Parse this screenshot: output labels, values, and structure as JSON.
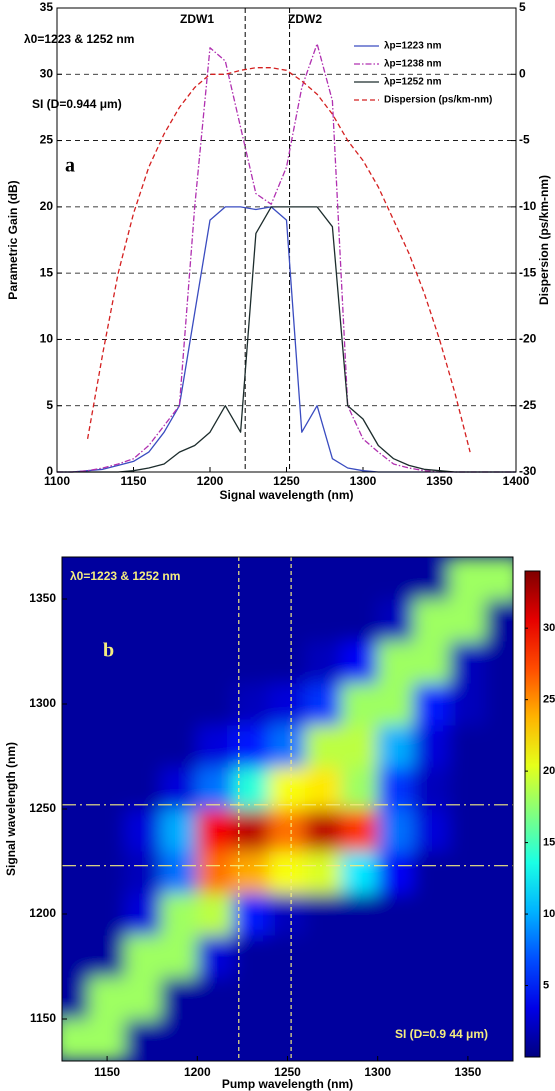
{
  "chart_data": [
    {
      "type": "line",
      "xlabel": "Signal wavelength (nm)",
      "ylabel": "Parametric Gain (dB)",
      "y2label": "Dispersion (ps/km-nm)",
      "annotations": [
        "ZDW1",
        "ZDW2",
        "λ0=1223 & 1252 nm",
        "SI (D=0.944 μm)",
        "a"
      ],
      "vlines": [
        1223,
        1252
      ],
      "xlim": [
        1100,
        1400
      ],
      "xticks": [
        1100,
        1150,
        1200,
        1250,
        1300,
        1350,
        1400
      ],
      "ylim": [
        0,
        35
      ],
      "yticks": [
        0,
        5,
        10,
        15,
        20,
        25,
        30,
        35
      ],
      "y2lim": [
        -30,
        5
      ],
      "y2ticks": [
        -30,
        -25,
        -20,
        -15,
        -10,
        -5,
        0,
        5
      ],
      "grid": true,
      "legend": "upper right",
      "x": [
        1100,
        1110,
        1120,
        1130,
        1140,
        1150,
        1160,
        1170,
        1180,
        1190,
        1200,
        1210,
        1220,
        1230,
        1240,
        1250,
        1260,
        1270,
        1280,
        1290,
        1300,
        1310,
        1320,
        1330,
        1340,
        1350,
        1360,
        1370,
        1380,
        1390,
        1400
      ],
      "series": [
        {
          "name": "λp=1223 nm",
          "color": "#3a4cc0",
          "dash": "solid",
          "values": [
            0,
            0,
            0.1,
            0.2,
            0.5,
            0.8,
            1.5,
            3,
            5,
            12,
            19,
            20,
            20,
            19.8,
            20,
            19,
            3,
            5,
            1,
            0.3,
            0.1,
            0,
            0,
            0,
            0,
            0,
            0,
            0,
            0,
            0,
            0
          ]
        },
        {
          "name": "λp=1238 nm",
          "color": "#b030b0",
          "dash": "dashdot",
          "values": [
            0,
            0,
            0.1,
            0.3,
            0.6,
            1,
            2,
            3.5,
            5,
            20,
            32,
            31,
            26,
            21,
            20.2,
            23,
            29,
            32.3,
            28,
            5,
            2.5,
            1.5,
            0.6,
            0.3,
            0.1,
            0,
            0,
            0,
            0,
            0,
            0
          ]
        },
        {
          "name": "λp=1252 nm",
          "color": "#1c2c2c",
          "dash": "solid",
          "values": [
            0,
            0,
            0,
            0,
            0,
            0.1,
            0.3,
            0.6,
            1.5,
            2,
            3,
            5,
            3,
            18,
            20,
            20,
            20,
            20,
            18.5,
            5,
            4,
            2,
            1,
            0.5,
            0.2,
            0.1,
            0,
            0,
            0,
            0,
            0
          ]
        },
        {
          "name": "Dispersion (ps/km-nm)",
          "color": "#d42020",
          "dash": "dashed",
          "axis": "y2",
          "values": [
            null,
            null,
            -27.5,
            -21,
            -15,
            -10.5,
            -7,
            -4.5,
            -2.5,
            -1,
            0,
            0,
            0.3,
            0.5,
            0.5,
            0.3,
            -0.5,
            -1.5,
            -3,
            -5,
            -6.5,
            -8.5,
            -11,
            -13.5,
            -16.5,
            -20,
            -24,
            -28.5,
            null,
            null,
            null
          ]
        }
      ]
    },
    {
      "type": "heatmap",
      "xlabel": "Pump wavelength (nm)",
      "ylabel": "Signal  wavelength (nm)",
      "annotations": [
        "λ0=1223 & 1252 nm",
        "b",
        "SI (D=0.9 44 μm)"
      ],
      "vlines": [
        1223,
        1252
      ],
      "hlines": [
        1223,
        1252
      ],
      "xlim": [
        1125,
        1375
      ],
      "xticks": [
        1150,
        1200,
        1250,
        1300,
        1350
      ],
      "ylim": [
        1130,
        1370
      ],
      "yticks": [
        1150,
        1200,
        1250,
        1300,
        1350
      ],
      "zlim": [
        0,
        34
      ],
      "zticks": [
        5,
        10,
        15,
        20,
        25,
        30
      ],
      "x": [
        1130,
        1150,
        1170,
        1190,
        1210,
        1230,
        1250,
        1270,
        1290,
        1310,
        1330,
        1350,
        1370
      ],
      "y": [
        1140,
        1160,
        1180,
        1200,
        1220,
        1240,
        1260,
        1280,
        1300,
        1320,
        1340,
        1360
      ],
      "z": [
        [
          18,
          18,
          1,
          1,
          1,
          1,
          1,
          1,
          1,
          1,
          1,
          1,
          1
        ],
        [
          1,
          18,
          18,
          1,
          1,
          1,
          1,
          1,
          1,
          1,
          1,
          1,
          1
        ],
        [
          1,
          1,
          18,
          18,
          3,
          1,
          1,
          1,
          1,
          1,
          1,
          1,
          1
        ],
        [
          1,
          1,
          3,
          18,
          19,
          5,
          2,
          1,
          1,
          1,
          1,
          1,
          1
        ],
        [
          1,
          1,
          2,
          8,
          26,
          24,
          21,
          20,
          12,
          4,
          1,
          1,
          1
        ],
        [
          1,
          1,
          3,
          10,
          30,
          32,
          26,
          32,
          28,
          8,
          3,
          1,
          1
        ],
        [
          1,
          1,
          1,
          3,
          8,
          14,
          21,
          22,
          18,
          6,
          2,
          1,
          1
        ],
        [
          1,
          1,
          1,
          1,
          3,
          5,
          8,
          19,
          19,
          10,
          3,
          1,
          1
        ],
        [
          1,
          1,
          1,
          1,
          1,
          2,
          3,
          6,
          18,
          18,
          5,
          2,
          1
        ],
        [
          1,
          1,
          1,
          1,
          1,
          1,
          1,
          2,
          4,
          18,
          18,
          2,
          1
        ],
        [
          1,
          1,
          1,
          1,
          1,
          1,
          1,
          1,
          1,
          2,
          18,
          18,
          1
        ],
        [
          1,
          1,
          1,
          1,
          1,
          1,
          1,
          1,
          1,
          1,
          1,
          18,
          18
        ]
      ]
    }
  ]
}
